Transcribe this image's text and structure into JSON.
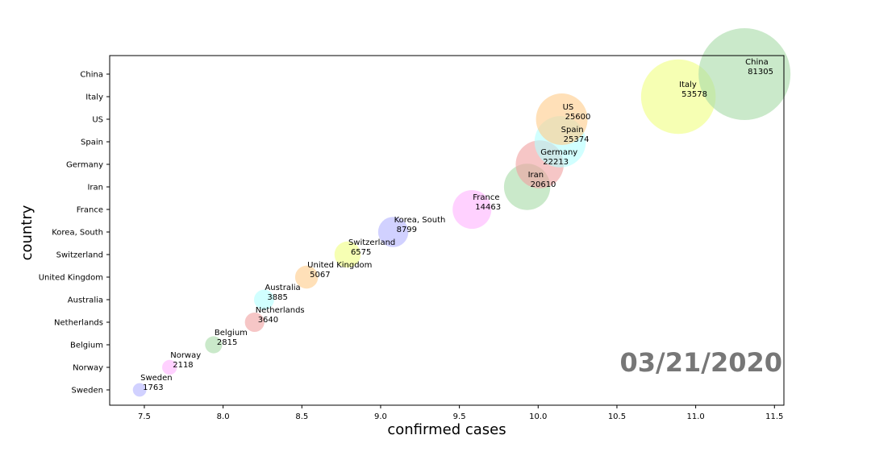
{
  "chart_data": {
    "type": "scatter",
    "xlabel": "confirmed cases",
    "ylabel": "country",
    "xlim": [
      7.28,
      11.56
    ],
    "xticks": [
      7.5,
      8.0,
      8.5,
      9.0,
      9.5,
      10.0,
      10.5,
      11.0,
      11.5
    ],
    "xtick_labels": [
      "7.5",
      "8.0",
      "8.5",
      "9.0",
      "9.5",
      "10.0",
      "10.5",
      "11.0",
      "11.5"
    ],
    "categories": [
      "Sweden",
      "Norway",
      "Belgium",
      "Netherlands",
      "Australia",
      "United Kingdom",
      "Switzerland",
      "Korea, South",
      "France",
      "Iran",
      "Germany",
      "Spain",
      "US",
      "Italy",
      "China"
    ],
    "points": [
      {
        "country": "Sweden",
        "x": 7.47,
        "label_name": "Sweden",
        "label_value": "1763",
        "color": "#b3b3ff"
      },
      {
        "country": "Norway",
        "x": 7.66,
        "label_name": "Norway",
        "label_value": "2118",
        "color": "#ffb3ff"
      },
      {
        "country": "Belgium",
        "x": 7.94,
        "label_name": "Belgium",
        "label_value": "2815",
        "color": "#a6dba6"
      },
      {
        "country": "Netherlands",
        "x": 8.2,
        "label_name": "Netherlands",
        "label_value": "3640",
        "color": "#f0a0a0"
      },
      {
        "country": "Australia",
        "x": 8.26,
        "label_name": "Australia",
        "label_value": "3885",
        "color": "#b3ffff"
      },
      {
        "country": "United Kingdom",
        "x": 8.53,
        "label_name": "United Kingdom",
        "label_value": "5067",
        "color": "#ffcc88"
      },
      {
        "country": "Switzerland",
        "x": 8.79,
        "label_name": "Switzerland",
        "label_value": "6575",
        "color": "#f0ff80"
      },
      {
        "country": "Korea, South",
        "x": 9.08,
        "label_name": "Korea, South",
        "label_value": "8799",
        "color": "#b3b3ff"
      },
      {
        "country": "France",
        "x": 9.58,
        "label_name": "France",
        "label_value": "14463",
        "color": "#ffb3ff"
      },
      {
        "country": "Iran",
        "x": 9.93,
        "label_name": "Iran",
        "label_value": "20610",
        "color": "#a6dba6"
      },
      {
        "country": "Germany",
        "x": 10.01,
        "label_name": "Germany",
        "label_value": "22213",
        "color": "#f0a0a0"
      },
      {
        "country": "Spain",
        "x": 10.14,
        "label_name": "Spain",
        "label_value": "25374",
        "color": "#b3ffff"
      },
      {
        "country": "US",
        "x": 10.15,
        "label_name": "US",
        "label_value": "25600",
        "color": "#ffcc88"
      },
      {
        "country": "Italy",
        "x": 10.89,
        "label_name": "Italy",
        "label_value": "53578",
        "color": "#f0ff80"
      },
      {
        "country": "China",
        "x": 11.31,
        "label_name": "China",
        "label_value": "81305",
        "color": "#a6dba6"
      }
    ],
    "marker_size": "proportional to confirmed cases",
    "marker_opacity": 0.6,
    "grid": false,
    "annotation": "03/21/2020",
    "annotation_color": "#777777"
  }
}
